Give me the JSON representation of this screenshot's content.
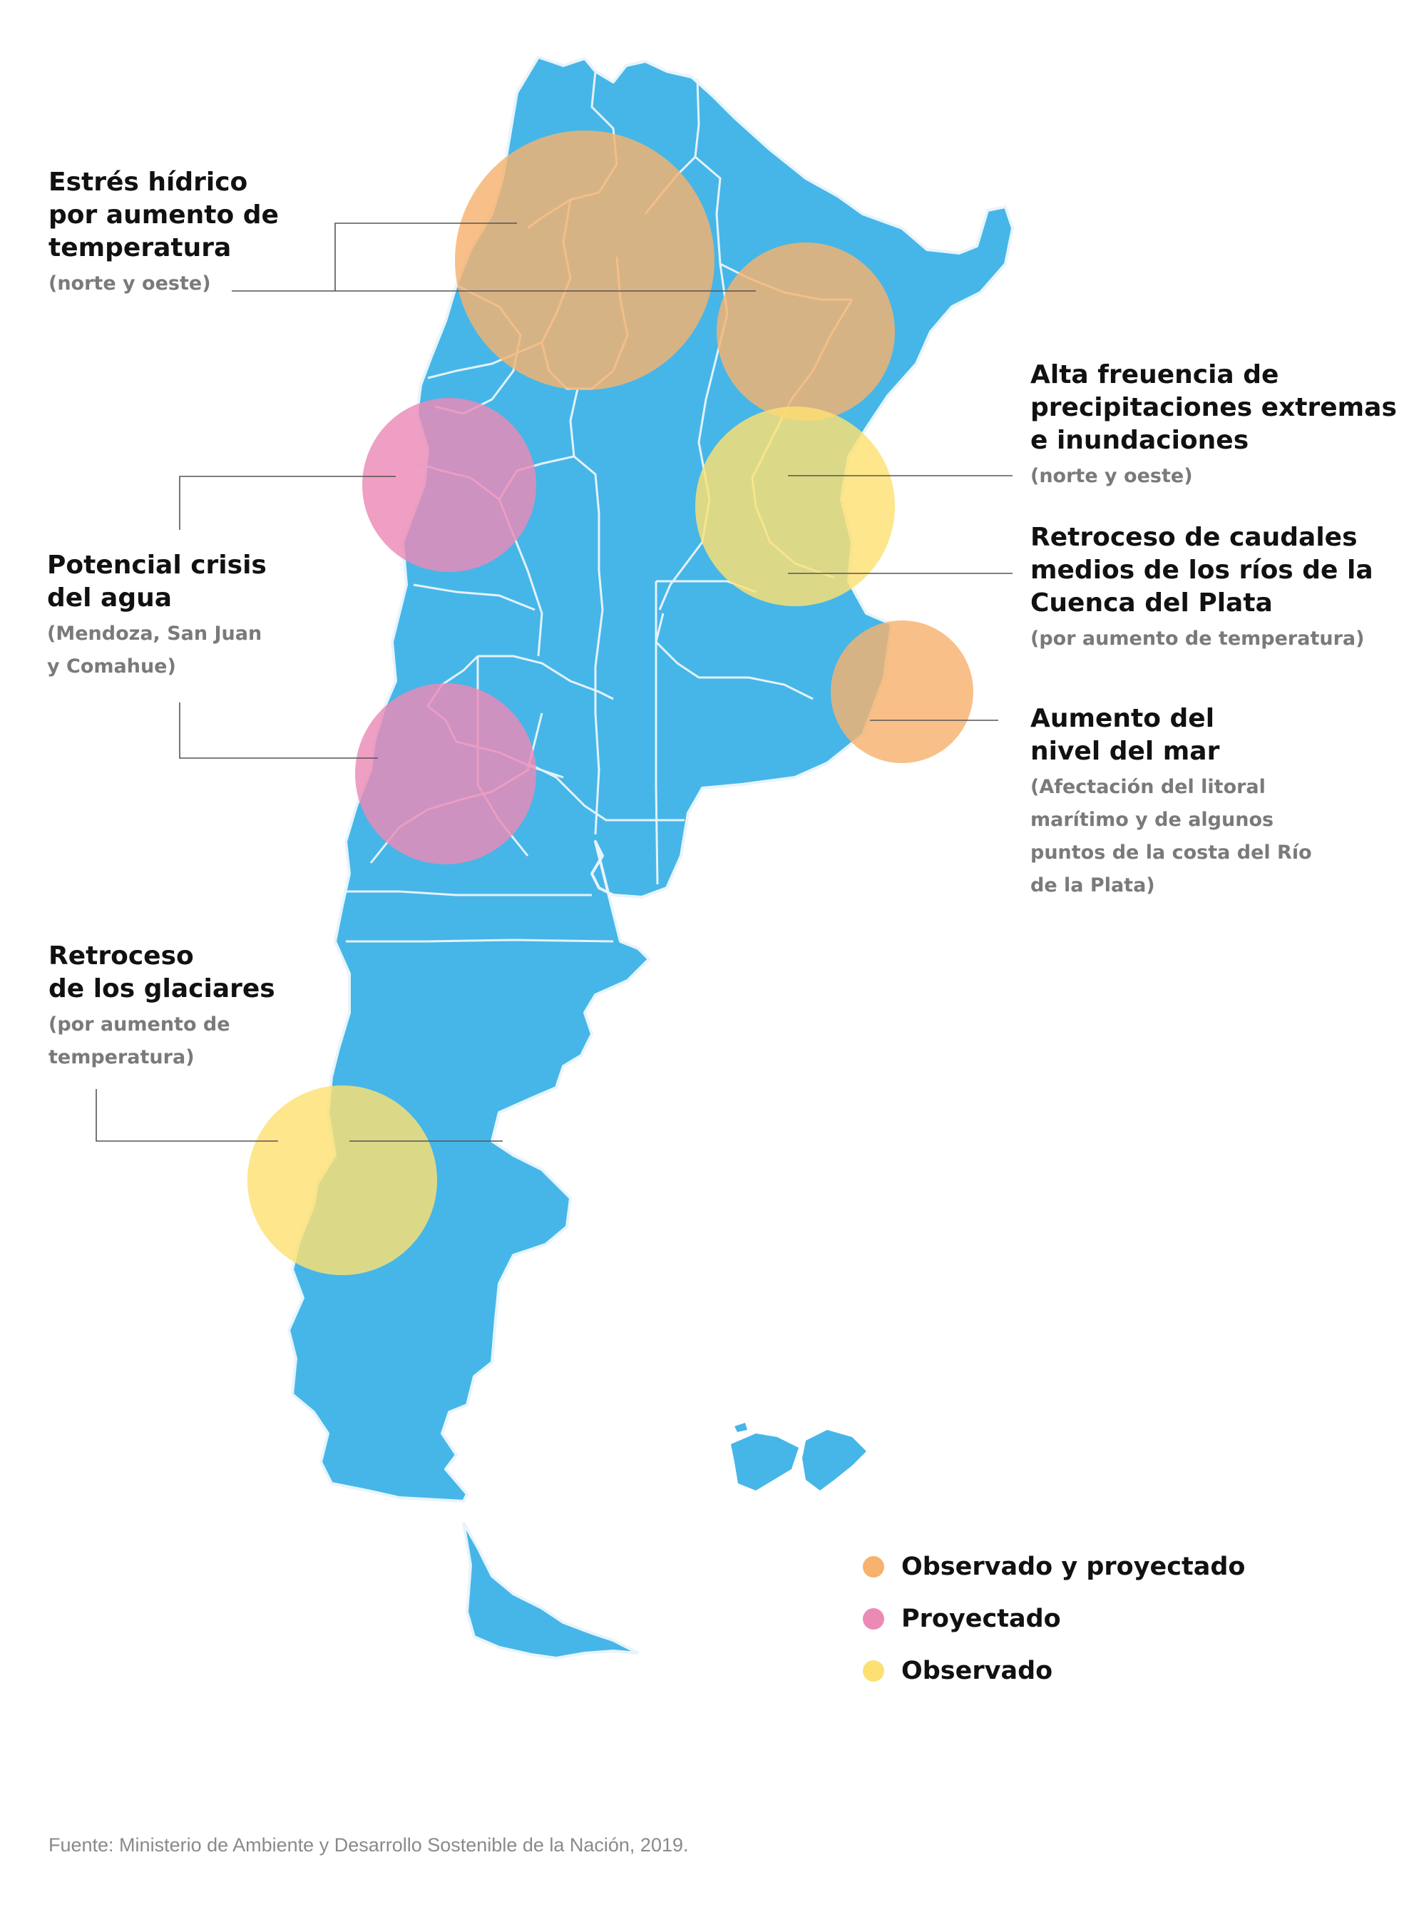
{
  "colors": {
    "land": "#46b6e8",
    "border": "#e8f4fb",
    "observed_projected": "#f7b26e",
    "projected": "#ec8ab6",
    "observed": "#fde073",
    "leader_line": "#555555"
  },
  "annotations": {
    "heat_stress": {
      "title": "Estrés hídrico\npor aumento de\ntemperatura",
      "subtitle": "(norte y oeste)"
    },
    "water_crisis": {
      "title": "Potencial crisis\ndel agua",
      "subtitle": "(Mendoza, San Juan\ny Comahue)"
    },
    "glaciers": {
      "title": "Retroceso\nde los glaciares",
      "subtitle": "(por aumento de\ntemperatura)"
    },
    "extreme_rain": {
      "title": "Alta freuencia de\nprecipitaciones extremas\ne inundaciones",
      "subtitle": "(norte y oeste)"
    },
    "river_flow": {
      "title": "Retroceso de caudales\nmedios de los ríos de la\nCuenca del Plata",
      "subtitle": "(por aumento de temperatura)"
    },
    "sea_level": {
      "title": "Aumento del\nnivel del mar",
      "subtitle": "(Afectación del litoral\nmarítimo y de algunos\npuntos de la costa del Río\nde la Plata)"
    }
  },
  "impact_zones": [
    {
      "id": "north-west",
      "category": "observed_projected"
    },
    {
      "id": "north-east",
      "category": "observed_projected"
    },
    {
      "id": "cuyo",
      "category": "projected"
    },
    {
      "id": "litoral",
      "category": "observed"
    },
    {
      "id": "comahue",
      "category": "projected"
    },
    {
      "id": "buenos-aires-coast",
      "category": "observed_projected"
    },
    {
      "id": "patagonia-andes",
      "category": "observed"
    }
  ],
  "legend": [
    {
      "label": "Observado y proyectado",
      "category": "observed_projected"
    },
    {
      "label": "Proyectado",
      "category": "projected"
    },
    {
      "label": "Observado",
      "category": "observed"
    }
  ],
  "source": "Fuente: Ministerio  de Ambiente y Desarrollo Sostenible de la Nación, 2019."
}
